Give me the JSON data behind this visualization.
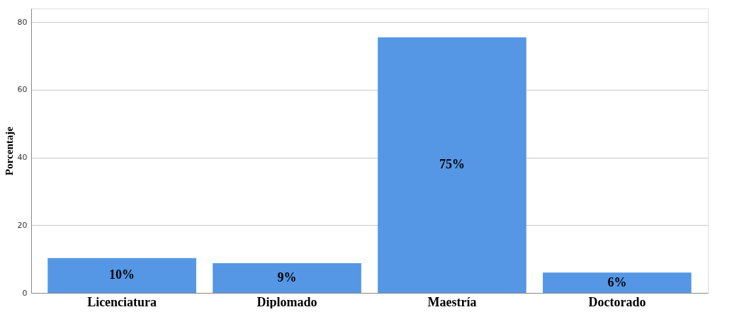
{
  "chart_data": {
    "type": "bar",
    "ylabel": "Porcentaje",
    "categories": [
      "Licenciatura",
      "Diplomado",
      "Maestría",
      "Doctorado"
    ],
    "values": [
      10.3,
      8.8,
      75.5,
      6.0
    ],
    "value_labels": [
      "10%",
      "9%",
      "75%",
      "6%"
    ],
    "color": "#5597e4",
    "ylim": [
      0,
      84
    ],
    "yticks": [
      0,
      20,
      40,
      60,
      80
    ],
    "grid": "y"
  }
}
